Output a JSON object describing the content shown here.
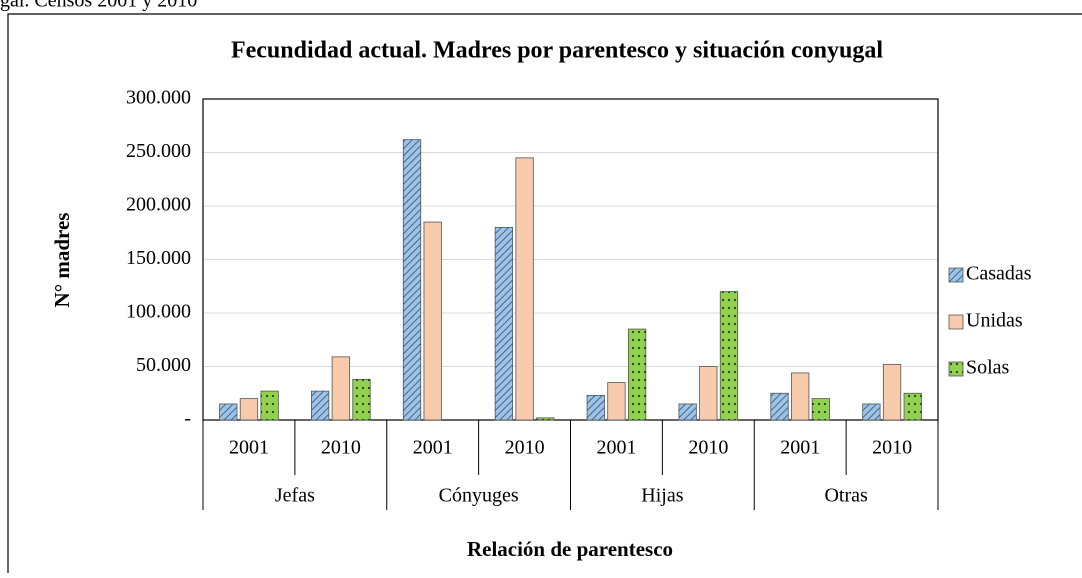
{
  "caption": "gal. Censos 2001 y 2010",
  "chart_data": {
    "type": "bar",
    "title": "Fecundidad actual. Madres por parentesco y situación conyugal",
    "x_label": "Relación de parentesco",
    "y_label": "N° madres",
    "categories": [
      "2001",
      "2010",
      "2001",
      "2010",
      "2001",
      "2010",
      "2001",
      "2010"
    ],
    "groups": [
      "Jefas",
      "Cónyuges",
      "Hijas",
      "Otras"
    ],
    "series": [
      {
        "name": "Casadas",
        "color": "#9dc3e6",
        "pattern": "diagonal",
        "values": [
          15000,
          27000,
          262000,
          180000,
          23000,
          15000,
          25000,
          15000
        ]
      },
      {
        "name": "Unidas",
        "color": "#f8cbad",
        "values": [
          20000,
          59000,
          185000,
          245000,
          35000,
          50000,
          44000,
          52000
        ]
      },
      {
        "name": "Solas",
        "color": "#92d050",
        "pattern": "dots",
        "values": [
          27000,
          38000,
          0,
          2000,
          85000,
          120000,
          20000,
          25000
        ]
      }
    ],
    "ylim": [
      0,
      300000
    ],
    "yticks": [
      {
        "value": 0,
        "label": "-"
      },
      {
        "value": 50000,
        "label": "50.000"
      },
      {
        "value": 100000,
        "label": "100.000"
      },
      {
        "value": 150000,
        "label": "150.000"
      },
      {
        "value": 200000,
        "label": "200.000"
      },
      {
        "value": 250000,
        "label": "250.000"
      },
      {
        "value": 300000,
        "label": "300.000"
      }
    ],
    "grid": true,
    "legend": "right"
  }
}
